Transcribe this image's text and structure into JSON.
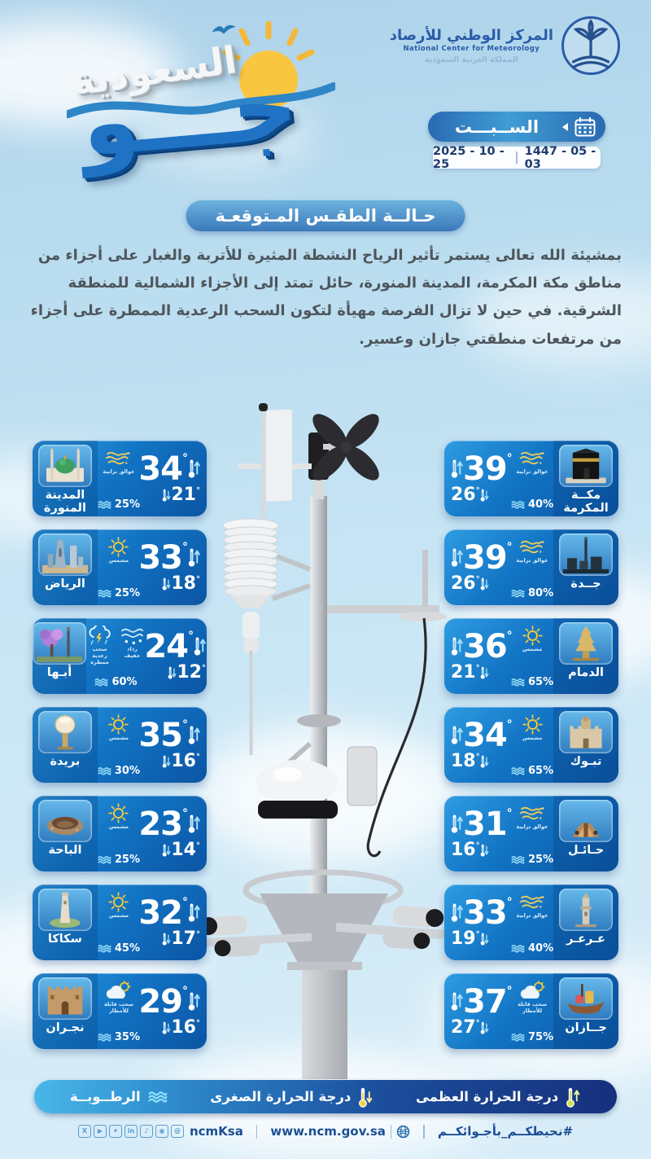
{
  "header": {
    "brand": {
      "title_top": "السعودية",
      "title_main": "جـــو"
    },
    "ncm": {
      "line1": "المركز الوطني للأرصاد",
      "line2": "National Center for Meteorology",
      "line3": "المملكة العربية السعودية"
    },
    "date": {
      "day": "الســبـــت",
      "gregorian": "2025 - 10 - 25",
      "hijri": "1447 - 05 - 03"
    }
  },
  "forecast": {
    "title": "حـالــة الطقـس المـتوقعـة",
    "body": "بمشيئة الله تعالى يستمر تأثير الرياح النشطة المثيرة للأتربة والغبار على أجزاء من مناطق مكة المكرمة، المدينة المنورة، حائل تمتد إلى الأجزاء الشمالية للمنطقة الشرقية. في حين لا تزال الفرصة مهيأة لتكون السحب الرعدية الممطرة على أجزاء من مرتفعات منطقتي جازان وعسير."
  },
  "cities": {
    "left": [
      {
        "id": "medina",
        "name": "المدينة المنورة",
        "max": 34,
        "min": 21,
        "humidity": "25%",
        "landmark": "mosque",
        "conditions": [
          {
            "icon": "dust",
            "label": "عوالق ترابية"
          }
        ]
      },
      {
        "id": "riyadh",
        "name": "الرياض",
        "max": 33,
        "min": 18,
        "humidity": "25%",
        "landmark": "skyline",
        "conditions": [
          {
            "icon": "sun",
            "label": "مشمس"
          }
        ]
      },
      {
        "id": "abha",
        "name": "أبـها",
        "max": 24,
        "min": 12,
        "humidity": "60%",
        "landmark": "tree",
        "conditions": [
          {
            "icon": "drizzle",
            "label": "رذاذ خفيف"
          },
          {
            "icon": "thunder",
            "label": "سحب رعدية ممطرة"
          }
        ]
      },
      {
        "id": "buraidah",
        "name": "بريدة",
        "max": 35,
        "min": 16,
        "humidity": "30%",
        "landmark": "water_tower",
        "conditions": [
          {
            "icon": "sun",
            "label": "مشمس"
          }
        ]
      },
      {
        "id": "albaha",
        "name": "الباحة",
        "max": 23,
        "min": 14,
        "humidity": "25%",
        "landmark": "stone",
        "conditions": [
          {
            "icon": "sun",
            "label": "مشمس"
          }
        ]
      },
      {
        "id": "sakaka",
        "name": "سكاكا",
        "max": 32,
        "min": 17,
        "humidity": "45%",
        "landmark": "tower",
        "conditions": [
          {
            "icon": "sun",
            "label": "مشمس"
          }
        ]
      },
      {
        "id": "najran",
        "name": "نجـران",
        "max": 29,
        "min": 16,
        "humidity": "35%",
        "landmark": "mud_fort",
        "conditions": [
          {
            "icon": "rain_sun",
            "label": "سحب قابلة للأمطار"
          }
        ]
      }
    ],
    "right": [
      {
        "id": "makkah",
        "name": "مكــة المكرمة",
        "max": 39,
        "min": 26,
        "humidity": "40%",
        "landmark": "kaaba",
        "conditions": [
          {
            "icon": "dust",
            "label": "عوالق ترابية"
          }
        ]
      },
      {
        "id": "jeddah",
        "name": "جــدة",
        "max": 39,
        "min": 26,
        "humidity": "80%",
        "landmark": "jeddah",
        "conditions": [
          {
            "icon": "dust",
            "label": "عوالق ترابية"
          }
        ]
      },
      {
        "id": "dammam",
        "name": "الدمام",
        "max": 36,
        "min": 21,
        "humidity": "65%",
        "landmark": "dammam",
        "conditions": [
          {
            "icon": "sun",
            "label": "مشمس"
          }
        ]
      },
      {
        "id": "tabuk",
        "name": "تبـوك",
        "max": 34,
        "min": 18,
        "humidity": "65%",
        "landmark": "tabuk",
        "conditions": [
          {
            "icon": "sun",
            "label": "مشمس"
          }
        ]
      },
      {
        "id": "hail",
        "name": "حـائـل",
        "max": 31,
        "min": 16,
        "humidity": "25%",
        "landmark": "hail",
        "conditions": [
          {
            "icon": "dust",
            "label": "عوالق ترابية"
          }
        ]
      },
      {
        "id": "arar",
        "name": "عـرعـر",
        "max": 33,
        "min": 19,
        "humidity": "40%",
        "landmark": "arar",
        "conditions": [
          {
            "icon": "dust",
            "label": "عوالق ترابية"
          }
        ]
      },
      {
        "id": "jazan",
        "name": "جــازان",
        "max": 37,
        "min": 27,
        "humidity": "75%",
        "landmark": "boat",
        "conditions": [
          {
            "icon": "rain_sun",
            "label": "سحب قابلة للأمطار"
          }
        ]
      }
    ]
  },
  "legend": {
    "max": "درجة الحرارة العظمى",
    "min": "درجة الحرارة الصغرى",
    "humidity": "الرطــوبــة"
  },
  "footer": {
    "hashtag": "#نحيطكــم_بأجـوائكــم",
    "website": "www.ncm.gov.sa",
    "social_handle": "ncmKsa",
    "social_icons": [
      "x",
      "youtube",
      "snapchat",
      "linkedin",
      "tiktok",
      "instagram"
    ]
  },
  "colors": {
    "card_top": "#2e9ce2",
    "card_bottom": "#0b55a4",
    "accent_sun": "#f7c93f",
    "legend_navy": "#16307d",
    "legend_cyan": "#49b7e8",
    "sky": "#bcdcee",
    "text_dark": "#4e565c",
    "navy_text": "#1c3a6e",
    "brand_blue": "#1f72c4"
  }
}
